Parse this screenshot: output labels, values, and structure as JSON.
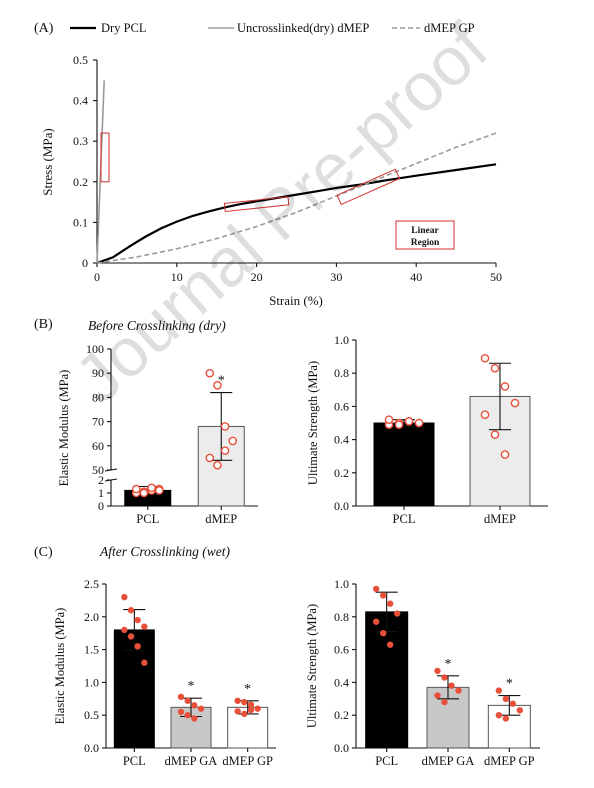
{
  "panel_labels": {
    "a": "(A)",
    "b": "(B)",
    "c": "(C)"
  },
  "watermark": "Journal Pre-proof",
  "colors": {
    "pcl": "#000000",
    "dmep": "#ececec",
    "outline": "#555555",
    "point": "#e8503a",
    "lineGrey": "#9a9a9a",
    "box": "#d0302c"
  },
  "chart_data": [
    {
      "id": "A",
      "type": "line",
      "xlabel": "Strain (%)",
      "ylabel": "Stress (MPa)",
      "xlim": [
        0,
        50
      ],
      "ylim": [
        0,
        0.5
      ],
      "xticks": [
        "0",
        "10",
        "20",
        "30",
        "40",
        "50"
      ],
      "yticks": [
        "0",
        "0.1",
        "0.2",
        "0.3",
        "0.4",
        "0.5"
      ],
      "annotation": [
        "Linear",
        "Region"
      ],
      "series": [
        {
          "name": "Dry PCL",
          "style": "solid-black",
          "x": [
            0,
            2,
            4,
            6,
            8,
            10,
            12,
            14,
            16,
            18,
            20,
            24,
            28,
            30,
            33,
            36,
            40,
            45,
            50
          ],
          "y": [
            0,
            0.014,
            0.04,
            0.064,
            0.085,
            0.102,
            0.116,
            0.127,
            0.137,
            0.145,
            0.152,
            0.165,
            0.178,
            0.185,
            0.193,
            0.203,
            0.215,
            0.229,
            0.243
          ]
        },
        {
          "name": "Uncrosslinked(dry) dMEP",
          "style": "solid-grey",
          "x": [
            0,
            0.3,
            0.6,
            0.9
          ],
          "y": [
            0,
            0.15,
            0.3,
            0.45
          ]
        },
        {
          "name": "dMEP GP",
          "style": "dashed-grey",
          "x": [
            0,
            5,
            10,
            15,
            20,
            25,
            30,
            35,
            40,
            45,
            50
          ],
          "y": [
            0,
            0.015,
            0.035,
            0.06,
            0.09,
            0.125,
            0.165,
            0.205,
            0.245,
            0.285,
            0.32
          ]
        }
      ],
      "boxes": [
        [
          0.5,
          0.2,
          1.5,
          0.32
        ],
        [
          16,
          0.135,
          24,
          0.155
        ],
        [
          30,
          0.175,
          38,
          0.2
        ]
      ]
    },
    {
      "id": "B-left",
      "type": "bar",
      "subtitle": "Before Crosslinking (dry)",
      "ylabel": "Elastic Modulus (MPa)",
      "categories": [
        "PCL",
        "dMEP"
      ],
      "values": [
        1.2,
        68
      ],
      "errors": [
        0.3,
        14
      ],
      "points": [
        [
          1.0,
          1.1,
          1.2,
          1.3,
          1.3,
          1.0,
          1.4,
          1.2
        ],
        [
          90,
          85,
          68,
          62,
          55,
          52,
          58
        ]
      ],
      "significance": [
        "",
        "*"
      ],
      "axis_break": {
        "low": [
          0,
          2
        ],
        "high": [
          50,
          100
        ]
      },
      "yticks_low": [
        "0",
        "1",
        "2"
      ],
      "yticks_high": [
        "50",
        "60",
        "70",
        "80",
        "90",
        "100"
      ]
    },
    {
      "id": "B-right",
      "type": "bar",
      "ylabel": "Ultimate Strength (MPa)",
      "categories": [
        "PCL",
        "dMEP"
      ],
      "values": [
        0.5,
        0.66
      ],
      "errors": [
        0.02,
        0.2
      ],
      "points": [
        [
          0.49,
          0.5,
          0.51,
          0.5,
          0.52,
          0.49,
          0.51,
          0.5
        ],
        [
          0.89,
          0.83,
          0.72,
          0.62,
          0.55,
          0.43,
          0.31
        ]
      ],
      "significance": [
        "",
        ""
      ],
      "ylim": [
        0,
        1.0
      ],
      "yticks": [
        "0.0",
        "0.2",
        "0.4",
        "0.6",
        "0.8",
        "1.0"
      ]
    },
    {
      "id": "C-left",
      "type": "bar",
      "subtitle": "After Crosslinking (wet)",
      "ylabel": "Elastic Modulus (MPa)",
      "categories": [
        "PCL",
        "dMEP GA",
        "dMEP GP"
      ],
      "values": [
        1.8,
        0.62,
        0.62
      ],
      "errors": [
        0.31,
        0.14,
        0.1
      ],
      "points": [
        [
          2.3,
          2.1,
          1.95,
          1.85,
          1.8,
          1.7,
          1.55,
          1.3
        ],
        [
          0.78,
          0.72,
          0.65,
          0.6,
          0.55,
          0.5,
          0.45
        ],
        [
          0.72,
          0.7,
          0.66,
          0.6,
          0.56,
          0.52,
          0.58
        ]
      ],
      "significance": [
        "",
        "*",
        "*"
      ],
      "ylim": [
        0,
        2.5
      ],
      "yticks": [
        "0.0",
        "0.5",
        "1.0",
        "1.5",
        "2.0",
        "2.5"
      ]
    },
    {
      "id": "C-right",
      "type": "bar",
      "ylabel": "Ultimate Strength (MPa)",
      "categories": [
        "PCL",
        "dMEP GA",
        "dMEP GP"
      ],
      "values": [
        0.83,
        0.37,
        0.26
      ],
      "errors": [
        0.12,
        0.07,
        0.06
      ],
      "points": [
        [
          0.97,
          0.93,
          0.88,
          0.82,
          0.77,
          0.7,
          0.63
        ],
        [
          0.47,
          0.43,
          0.38,
          0.35,
          0.32,
          0.28
        ],
        [
          0.35,
          0.3,
          0.27,
          0.23,
          0.2,
          0.18
        ]
      ],
      "significance": [
        "",
        "*",
        "*"
      ],
      "ylim": [
        0,
        1.0
      ],
      "yticks": [
        "0.0",
        "0.2",
        "0.4",
        "0.6",
        "0.8",
        "1.0"
      ]
    }
  ]
}
